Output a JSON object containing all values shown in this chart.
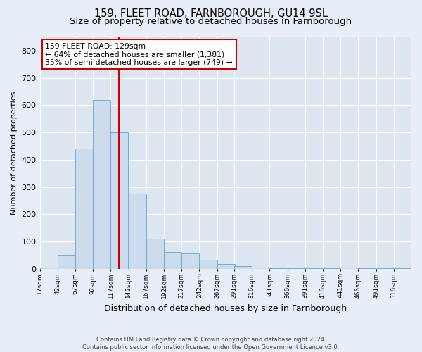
{
  "title1": "159, FLEET ROAD, FARNBOROUGH, GU14 9SL",
  "title2": "Size of property relative to detached houses in Farnborough",
  "xlabel": "Distribution of detached houses by size in Farnborough",
  "ylabel": "Number of detached properties",
  "footnote": "Contains HM Land Registry data © Crown copyright and database right 2024.\nContains public sector information licensed under the Open Government Licence v3.0.",
  "bar_color": "#ccdcec",
  "bar_edgecolor": "#7aaac8",
  "vline_value": 129,
  "vline_color": "#cc0000",
  "annotation_text": "159 FLEET ROAD: 129sqm\n← 64% of detached houses are smaller (1,381)\n35% of semi-detached houses are larger (749) →",
  "annotation_box_color": "#ffffff",
  "annotation_box_edgecolor": "#cc0000",
  "categories": [
    "17sqm",
    "42sqm",
    "67sqm",
    "92sqm",
    "117sqm",
    "142sqm",
    "167sqm",
    "192sqm",
    "217sqm",
    "242sqm",
    "267sqm",
    "291sqm",
    "316sqm",
    "341sqm",
    "366sqm",
    "391sqm",
    "416sqm",
    "441sqm",
    "466sqm",
    "491sqm",
    "516sqm"
  ],
  "bin_edges": [
    17,
    42,
    67,
    92,
    117,
    142,
    167,
    192,
    217,
    242,
    267,
    291,
    316,
    341,
    366,
    391,
    416,
    441,
    466,
    491,
    516
  ],
  "bin_width": 25,
  "values": [
    5,
    50,
    440,
    620,
    500,
    275,
    110,
    60,
    55,
    32,
    18,
    10,
    5,
    3,
    2,
    1,
    1,
    5,
    1,
    1,
    1
  ],
  "ylim": [
    0,
    850
  ],
  "yticks": [
    0,
    100,
    200,
    300,
    400,
    500,
    600,
    700,
    800
  ],
  "bg_color": "#e8eef8",
  "plot_bg_color": "#dce6f0",
  "grid_color": "#ffffff",
  "title_fontsize": 10.5,
  "subtitle_fontsize": 9.5
}
